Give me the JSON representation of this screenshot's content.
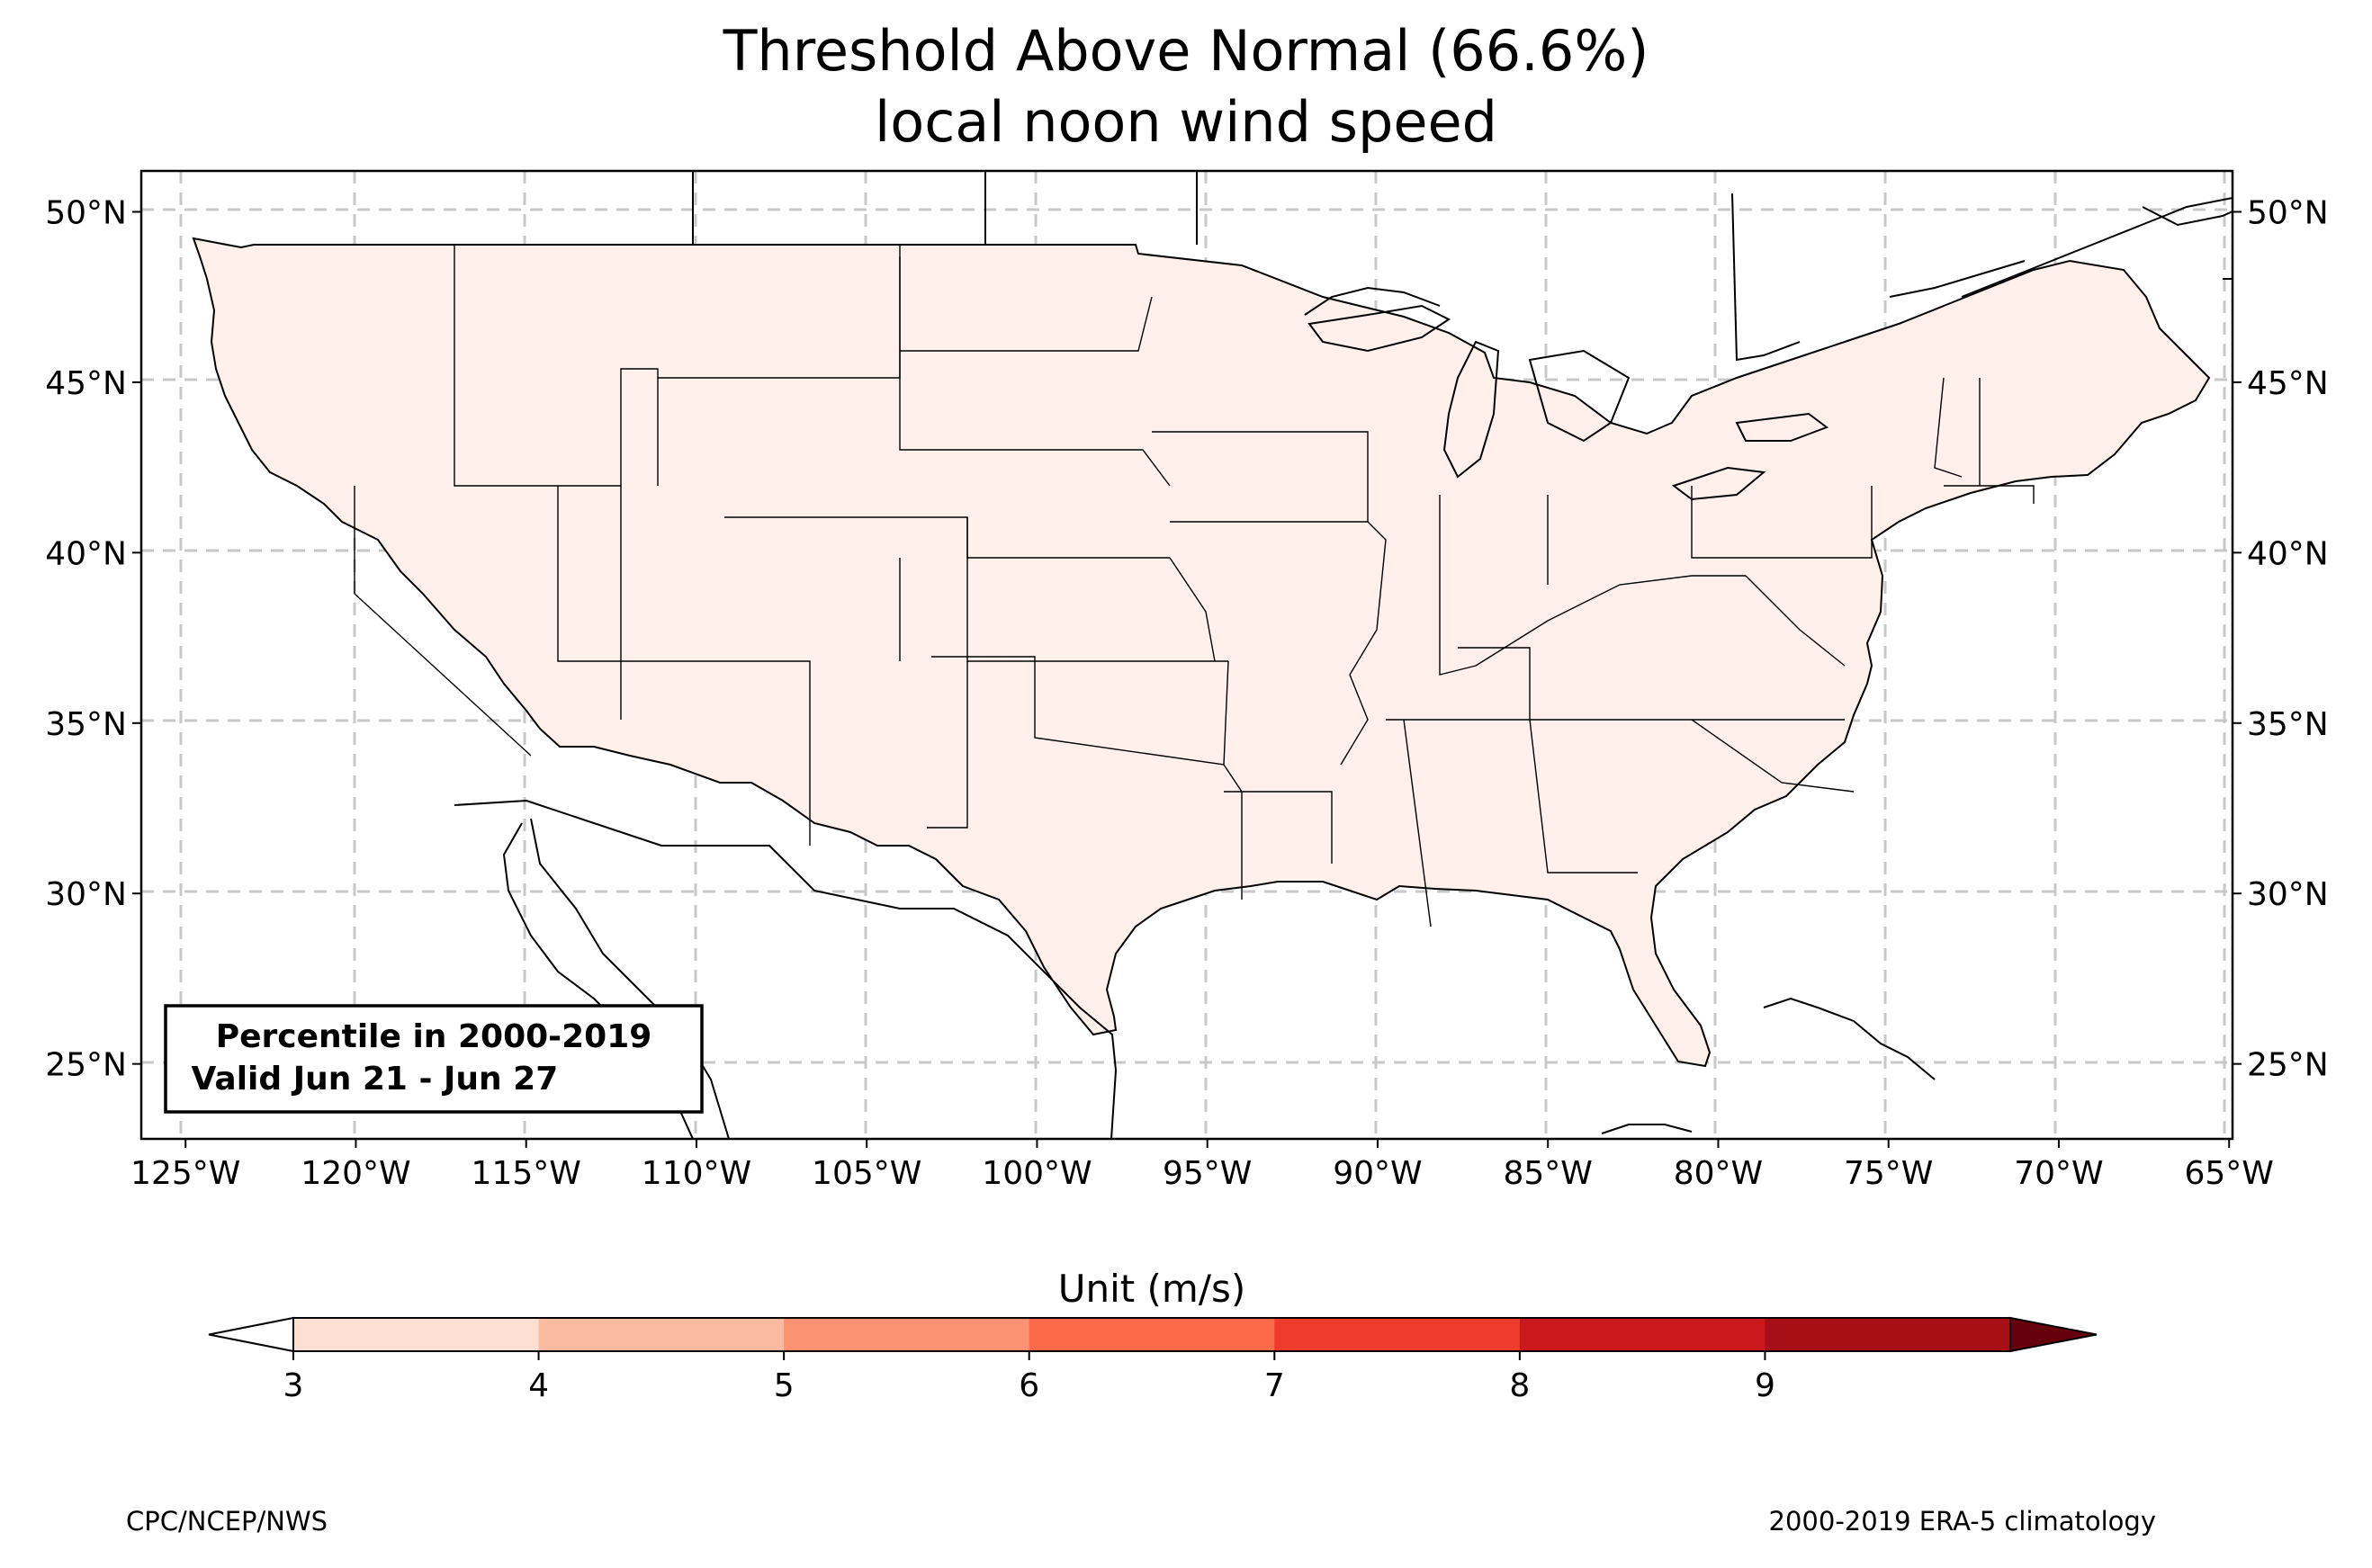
{
  "title": {
    "line1": "Threshold Above Normal (66.6%)",
    "line2": "local noon wind speed"
  },
  "map": {
    "lon_ticks": [
      "125°W",
      "120°W",
      "115°W",
      "110°W",
      "105°W",
      "100°W",
      "95°W",
      "90°W",
      "85°W",
      "80°W",
      "75°W",
      "70°W",
      "65°W"
    ],
    "lat_ticks": [
      "50°N",
      "45°N",
      "40°N",
      "35°N",
      "30°N",
      "25°N"
    ],
    "lon_range": [
      -126.3,
      -64.9
    ],
    "lat_range": [
      22.8,
      51.2
    ],
    "grid": "dashed",
    "fill_colors": {
      "c1": "#fff0eb",
      "c2": "#fdd3c2",
      "c3": "#fcaa8e",
      "c4": "#fb8060",
      "c5": "#f24b36",
      "c6": "#d22223",
      "c7": "#a8101a"
    }
  },
  "info_box": {
    "line1": "Percentile in 2000-2019",
    "line2": " Valid Jun 21 - Jun 27"
  },
  "colorbar": {
    "label": "Unit (m/s)",
    "ticks": [
      "3",
      "4",
      "5",
      "6",
      "7",
      "8",
      "9"
    ],
    "colors": [
      "#fee0d2",
      "#fcbba1",
      "#fc9272",
      "#fb6a4a",
      "#ef3b2c",
      "#cb181d",
      "#a50f15"
    ],
    "under_color": "#ffffff",
    "over_color": "#67000d"
  },
  "footer": {
    "left": "CPC/NCEP/NWS",
    "right": "2000-2019 ERA-5 climatology"
  }
}
